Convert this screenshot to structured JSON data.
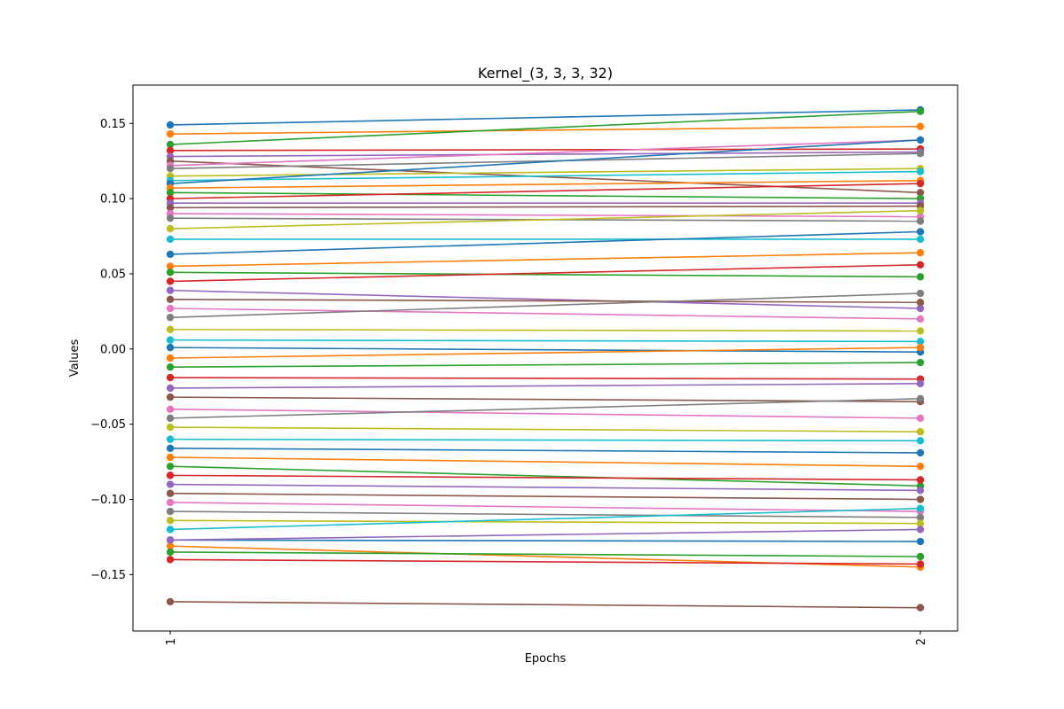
{
  "chart_data": {
    "type": "line",
    "title": "Kernel_(3, 3, 3, 32)",
    "xlabel": "Epochs",
    "ylabel": "Values",
    "x": [
      1,
      2
    ],
    "x_tick_labels": [
      "1",
      "2"
    ],
    "ylim": [
      -0.1875,
      0.1755
    ],
    "y_ticks": [
      -0.15,
      -0.1,
      -0.05,
      0.0,
      0.05,
      0.1,
      0.15
    ],
    "y_tick_labels": [
      "−0.15",
      "−0.10",
      "−0.05",
      "0.00",
      "0.05",
      "0.10",
      "0.15"
    ],
    "grid": false,
    "legend": "none",
    "series_note_count": 864,
    "color_cycle": [
      "#1f77b4",
      "#ff7f0e",
      "#2ca02c",
      "#d62728",
      "#9467bd",
      "#8c564b",
      "#e377c2",
      "#7f7f7f",
      "#bcbd22",
      "#17becf"
    ],
    "series": [
      {
        "values": [
          0.149,
          0.159
        ]
      },
      {
        "values": [
          0.143,
          0.148
        ]
      },
      {
        "values": [
          0.136,
          0.158
        ]
      },
      {
        "values": [
          0.132,
          0.133
        ]
      },
      {
        "values": [
          0.128,
          0.131
        ]
      },
      {
        "values": [
          0.125,
          0.104
        ]
      },
      {
        "values": [
          0.122,
          0.139
        ]
      },
      {
        "values": [
          0.12,
          0.13
        ]
      },
      {
        "values": [
          0.115,
          0.12
        ]
      },
      {
        "values": [
          0.112,
          0.118
        ]
      },
      {
        "values": [
          0.11,
          0.139
        ]
      },
      {
        "values": [
          0.107,
          0.112
        ]
      },
      {
        "values": [
          0.104,
          0.1
        ]
      },
      {
        "values": [
          0.1,
          0.11
        ]
      },
      {
        "values": [
          0.097,
          0.097
        ]
      },
      {
        "values": [
          0.094,
          0.095
        ]
      },
      {
        "values": [
          0.09,
          0.088
        ]
      },
      {
        "values": [
          0.087,
          0.085
        ]
      },
      {
        "values": [
          0.08,
          0.092
        ]
      },
      {
        "values": [
          0.073,
          0.073
        ]
      },
      {
        "values": [
          0.063,
          0.078
        ]
      },
      {
        "values": [
          0.055,
          0.064
        ]
      },
      {
        "values": [
          0.051,
          0.048
        ]
      },
      {
        "values": [
          0.045,
          0.056
        ]
      },
      {
        "values": [
          0.039,
          0.027
        ]
      },
      {
        "values": [
          0.033,
          0.031
        ]
      },
      {
        "values": [
          0.027,
          0.02
        ]
      },
      {
        "values": [
          0.021,
          0.037
        ]
      },
      {
        "values": [
          0.013,
          0.012
        ]
      },
      {
        "values": [
          0.006,
          0.005
        ]
      },
      {
        "values": [
          0.001,
          -0.002
        ]
      },
      {
        "values": [
          -0.006,
          0.001
        ]
      },
      {
        "values": [
          -0.012,
          -0.009
        ]
      },
      {
        "values": [
          -0.019,
          -0.02
        ]
      },
      {
        "values": [
          -0.026,
          -0.023
        ]
      },
      {
        "values": [
          -0.032,
          -0.035
        ]
      },
      {
        "values": [
          -0.04,
          -0.046
        ]
      },
      {
        "values": [
          -0.046,
          -0.033
        ]
      },
      {
        "values": [
          -0.052,
          -0.055
        ]
      },
      {
        "values": [
          -0.06,
          -0.061
        ]
      },
      {
        "values": [
          -0.066,
          -0.069
        ]
      },
      {
        "values": [
          -0.072,
          -0.078
        ]
      },
      {
        "values": [
          -0.078,
          -0.091
        ]
      },
      {
        "values": [
          -0.084,
          -0.087
        ]
      },
      {
        "values": [
          -0.09,
          -0.094
        ]
      },
      {
        "values": [
          -0.096,
          -0.1
        ]
      },
      {
        "values": [
          -0.102,
          -0.108
        ]
      },
      {
        "values": [
          -0.108,
          -0.112
        ]
      },
      {
        "values": [
          -0.114,
          -0.116
        ]
      },
      {
        "values": [
          -0.12,
          -0.106
        ]
      },
      {
        "values": [
          -0.127,
          -0.128
        ]
      },
      {
        "values": [
          -0.131,
          -0.145
        ]
      },
      {
        "values": [
          -0.135,
          -0.138
        ]
      },
      {
        "values": [
          -0.14,
          -0.143
        ]
      },
      {
        "values": [
          -0.127,
          -0.12
        ]
      },
      {
        "values": [
          -0.168,
          -0.172
        ]
      }
    ]
  }
}
